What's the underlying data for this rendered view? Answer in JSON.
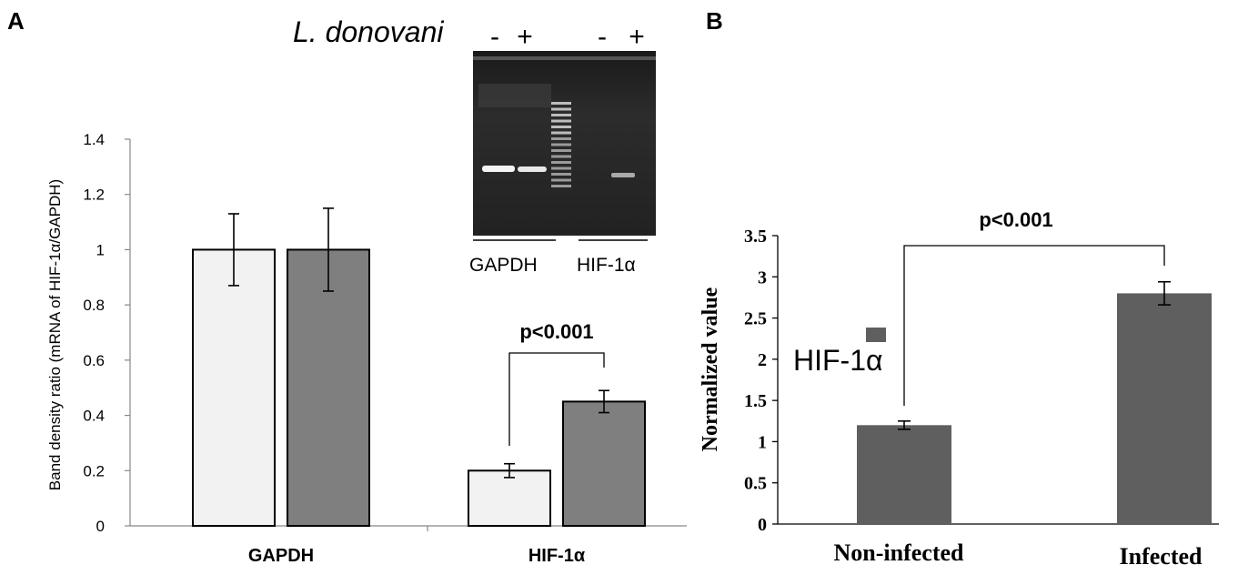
{
  "panels": {
    "a": {
      "letter": "A"
    },
    "b": {
      "letter": "B"
    }
  },
  "inset": {
    "species": "L. donovani",
    "lane_signs": [
      "-",
      "+",
      "-",
      "+"
    ],
    "gene_labels": [
      "GAPDH",
      "HIF-1α"
    ]
  },
  "chart_data": [
    {
      "type": "bar",
      "panel": "A",
      "ylabel": "Band density ratio (mRNA of HIF-1α/GAPDH)",
      "categories": [
        "GAPDH",
        "HIF-1α"
      ],
      "series": [
        {
          "values": [
            1.0,
            0.2
          ],
          "errors": [
            0.13,
            0.025
          ],
          "color": "#f2f2f2"
        },
        {
          "values": [
            1.0,
            0.45
          ],
          "errors": [
            0.15,
            0.04
          ],
          "color": "#7f7f7f"
        }
      ],
      "ylim": [
        0,
        1.4
      ],
      "yticks": [
        "0",
        "0.2",
        "0.4",
        "0.6",
        "0.8",
        "1",
        "1.2",
        "1.4"
      ],
      "annotation": "p<0.001",
      "grid": false
    },
    {
      "type": "bar",
      "panel": "B",
      "ylabel": "Normalized value",
      "categories": [
        "Non-infected",
        "Infected"
      ],
      "series": [
        {
          "name": "HIF-1α",
          "values": [
            1.2,
            2.8
          ],
          "errors": [
            0.05,
            0.14
          ],
          "color": "#5f5f5f"
        }
      ],
      "ylim": [
        0,
        3.5
      ],
      "yticks": [
        "0",
        "0.5",
        "1",
        "1.5",
        "2",
        "2.5",
        "3",
        "3.5"
      ],
      "annotation": "p<0.001",
      "legend": "left",
      "grid": false
    }
  ]
}
